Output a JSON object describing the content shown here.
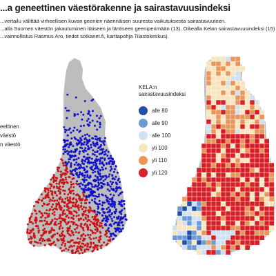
{
  "title": "...a geneettinen väestörakenne ja sairastavuusindeksi",
  "subtitle_lines": [
    "...vertailu välittää virheellisen kuvan geenien näennäisen suuresta vaikutuksesta sairastavuuteen.",
    "...alla Suomen väestön jakautuminen itäiseen ja läntiseen geeniperimään (13). Oikealla Kelan sairastavuusindeksi (15)",
    "...vainnollistus Rasmus Aro, tiedot sotkanet.fi, karttapohja Tilastokeskus)."
  ],
  "left_legend_lines": [
    "eettinen",
    "",
    "väestö",
    "",
    "n väestö"
  ],
  "kela_legend": {
    "title_lines": [
      "KELA:n",
      "sairastavuusindeksi"
    ],
    "items": [
      {
        "label": "alle 80",
        "color": "#1f4fa8"
      },
      {
        "label": "alle 90",
        "color": "#6d9ad3"
      },
      {
        "label": "alle 100",
        "color": "#cfe0f2"
      },
      {
        "label": "yli 100",
        "color": "#f8e4bd"
      },
      {
        "label": "yli 110",
        "color": "#e8965a"
      },
      {
        "label": "yli 120",
        "color": "#d61f26"
      }
    ]
  },
  "dot_colors": {
    "eastern": "#1212c8",
    "western": "#c81515"
  },
  "map_colors": {
    "base": "#bdbdbd"
  }
}
